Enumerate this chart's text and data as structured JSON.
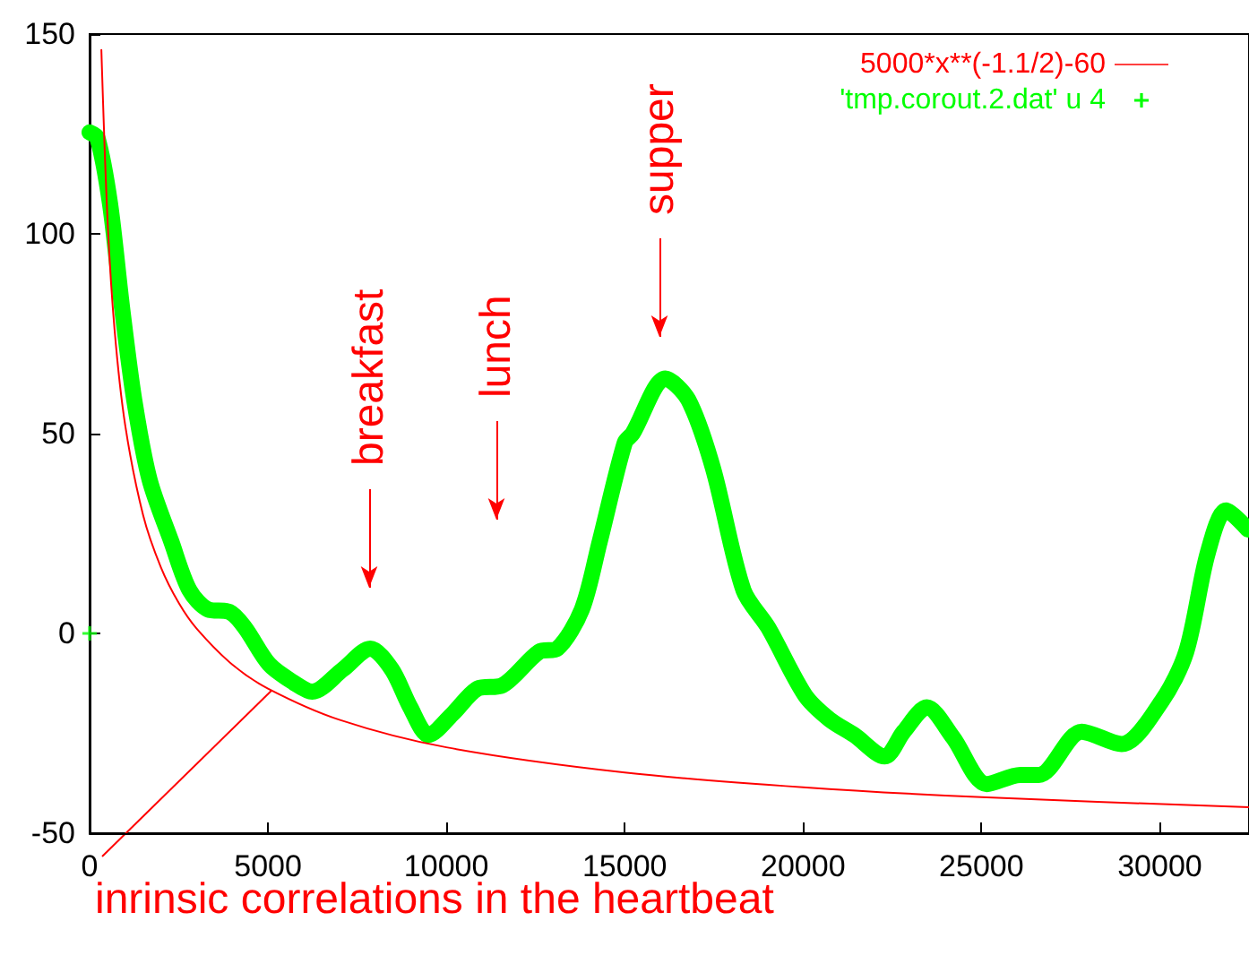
{
  "chart_data": {
    "type": "line",
    "legend": "top right",
    "xlim": [
      0,
      32500
    ],
    "ylim": [
      -50,
      150
    ],
    "xticks": [
      0,
      5000,
      10000,
      15000,
      20000,
      25000,
      30000
    ],
    "yticks": [
      -50,
      0,
      50,
      100,
      150
    ],
    "series": [
      {
        "name": "5000*x**(-1.1/2)-60",
        "color": "#ff0000",
        "x": [
          330,
          500,
          700,
          1000,
          1500,
          2000,
          2500,
          3000,
          4000,
          5000,
          7000,
          10000,
          15000,
          20000,
          25000,
          32500
        ],
        "values": [
          146,
          104,
          76,
          52,
          29.6,
          16.5,
          7.6,
          1.2,
          -7.8,
          -13.8,
          -21.6,
          -28.5,
          -34.8,
          -38.5,
          -41,
          -43.5
        ]
      },
      {
        "name": "'tmp.corout.2.dat' u 4",
        "color": "#00ff00",
        "marker": "cross",
        "x": [
          0,
          220,
          570,
          910,
          1250,
          1680,
          2290,
          2800,
          3320,
          3920,
          4350,
          5030,
          5720,
          6240,
          7100,
          7870,
          8470,
          8990,
          9500,
          10190,
          10880,
          11570,
          12600,
          13110,
          13800,
          14300,
          15000,
          15220,
          16140,
          16780,
          17470,
          18330,
          19020,
          20050,
          20740,
          21430,
          22290,
          22820,
          23470,
          24200,
          25150,
          26090,
          26610,
          27810,
          28930,
          30050,
          30740,
          31340,
          31860,
          32470
        ],
        "values": [
          125.4,
          124,
          107.7,
          81.5,
          58.5,
          38.5,
          23,
          10.8,
          6,
          5.4,
          1.5,
          -7.7,
          -12.3,
          -14.6,
          -9,
          -3.8,
          -9,
          -18.5,
          -25.4,
          -20,
          -13.8,
          -13,
          -4.6,
          -3.8,
          6,
          23,
          47.7,
          50,
          63.8,
          58.5,
          41.5,
          10.8,
          1.5,
          -15.4,
          -21.5,
          -25.4,
          -30.8,
          -24.6,
          -18.5,
          -26,
          -37.7,
          -35.4,
          -35.4,
          -24.6,
          -27.7,
          -17,
          -4.6,
          20,
          30.8,
          26
        ]
      },
      {
        "type": "scatter",
        "color": "#00ff00",
        "marker": "cross",
        "x": [
          0
        ],
        "values": [
          0
        ]
      }
    ],
    "annotations": [
      "breakfast",
      "lunch",
      "supper",
      {
        "text": "inrinsic correlations in the heartbeat",
        "x": 5100,
        "y": -14.3
      }
    ]
  }
}
